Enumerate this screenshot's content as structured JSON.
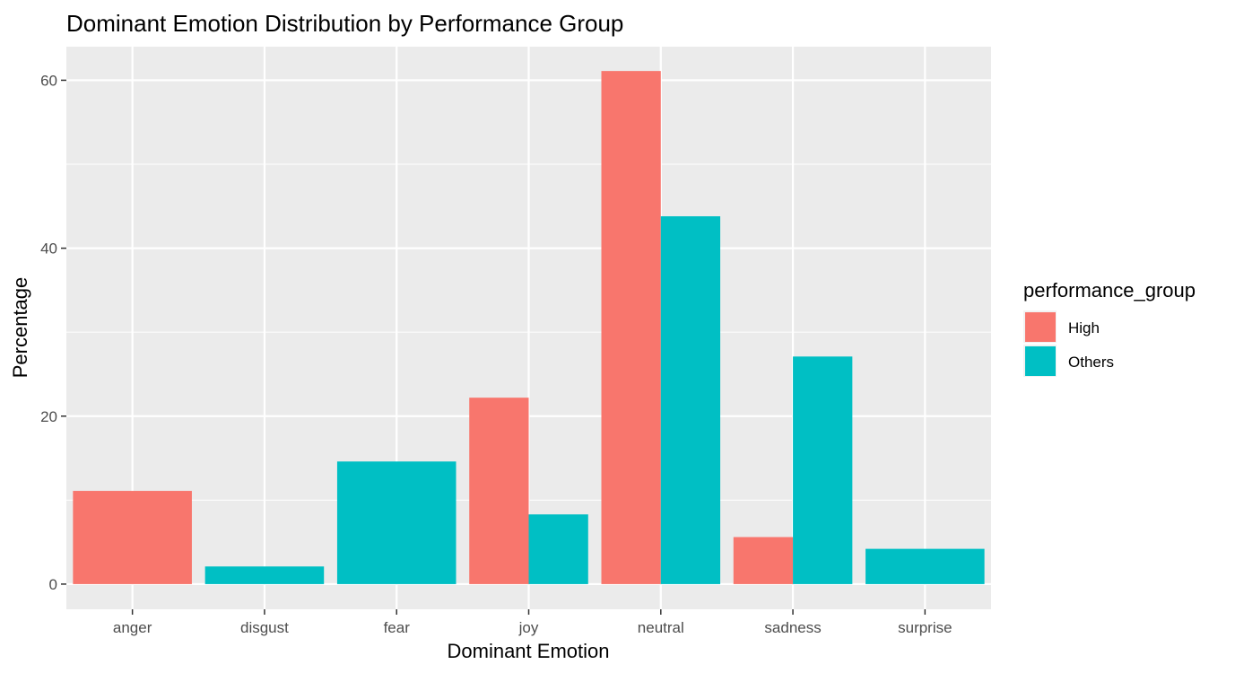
{
  "chart_data": {
    "type": "bar",
    "title": "Dominant Emotion Distribution by Performance Group",
    "xlabel": "Dominant Emotion",
    "ylabel": "Percentage",
    "categories": [
      "anger",
      "disgust",
      "fear",
      "joy",
      "neutral",
      "sadness",
      "surprise"
    ],
    "ylim": [
      -3,
      64
    ],
    "yticks": [
      0,
      20,
      40,
      60
    ],
    "grid": true,
    "legend": {
      "title": "performance_group",
      "placement": "right"
    },
    "series": [
      {
        "name": "High",
        "color": "#F8766D",
        "values": [
          11.1,
          null,
          null,
          22.2,
          61.1,
          5.6,
          null
        ]
      },
      {
        "name": "Others",
        "color": "#00BFC4",
        "values": [
          null,
          2.1,
          14.6,
          8.3,
          43.8,
          27.1,
          4.2
        ]
      }
    ],
    "panel_background": "#EBEBEB",
    "grid_color": "#FFFFFF"
  }
}
